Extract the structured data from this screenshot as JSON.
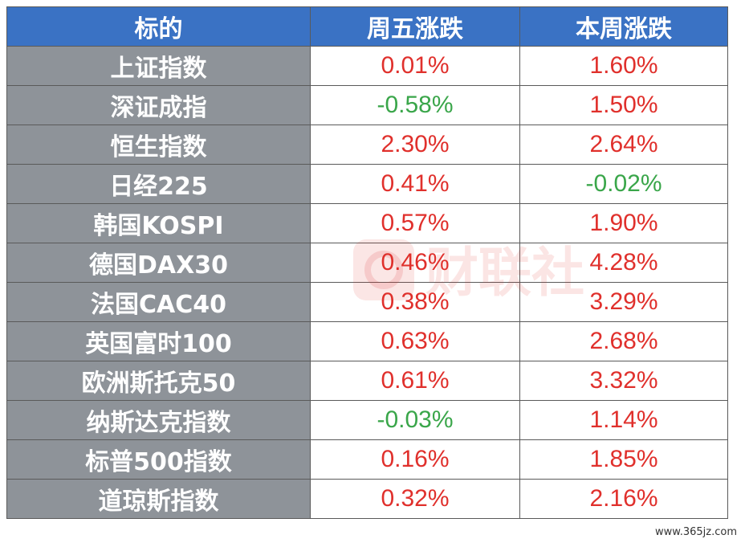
{
  "table": {
    "headers": [
      "标的",
      "周五涨跌",
      "本周涨跌"
    ],
    "rows": [
      {
        "name": "上证指数",
        "friday": "0.01%",
        "week": "1.60%",
        "friday_dir": "up",
        "week_dir": "up"
      },
      {
        "name": "深证成指",
        "friday": "-0.58%",
        "week": "1.50%",
        "friday_dir": "down",
        "week_dir": "up"
      },
      {
        "name": "恒生指数",
        "friday": "2.30%",
        "week": "2.64%",
        "friday_dir": "up",
        "week_dir": "up"
      },
      {
        "name": "日经225",
        "friday": "0.41%",
        "week": "-0.02%",
        "friday_dir": "up",
        "week_dir": "down"
      },
      {
        "name": "韩国KOSPI",
        "friday": "0.57%",
        "week": "1.90%",
        "friday_dir": "up",
        "week_dir": "up"
      },
      {
        "name": "德国DAX30",
        "friday": "0.46%",
        "week": "4.28%",
        "friday_dir": "up",
        "week_dir": "up"
      },
      {
        "name": "法国CAC40",
        "friday": "0.38%",
        "week": "3.29%",
        "friday_dir": "up",
        "week_dir": "up"
      },
      {
        "name": "英国富时100",
        "friday": "0.63%",
        "week": "2.68%",
        "friday_dir": "up",
        "week_dir": "up"
      },
      {
        "name": "欧洲斯托克50",
        "friday": "0.61%",
        "week": "3.32%",
        "friday_dir": "up",
        "week_dir": "up"
      },
      {
        "name": "纳斯达克指数",
        "friday": "-0.03%",
        "week": "1.14%",
        "friday_dir": "down",
        "week_dir": "up"
      },
      {
        "name": "标普500指数",
        "friday": "0.16%",
        "week": "1.85%",
        "friday_dir": "up",
        "week_dir": "up"
      },
      {
        "name": "道琼斯指数",
        "friday": "0.32%",
        "week": "2.16%",
        "friday_dir": "up",
        "week_dir": "up"
      }
    ]
  },
  "colors": {
    "header_bg": "#3a72c4",
    "name_bg": "#8e9399",
    "up": "#e0302c",
    "down": "#3aa64a"
  },
  "watermark": {
    "logo_text": "财联社"
  },
  "site_mark": "www.365jz.com"
}
